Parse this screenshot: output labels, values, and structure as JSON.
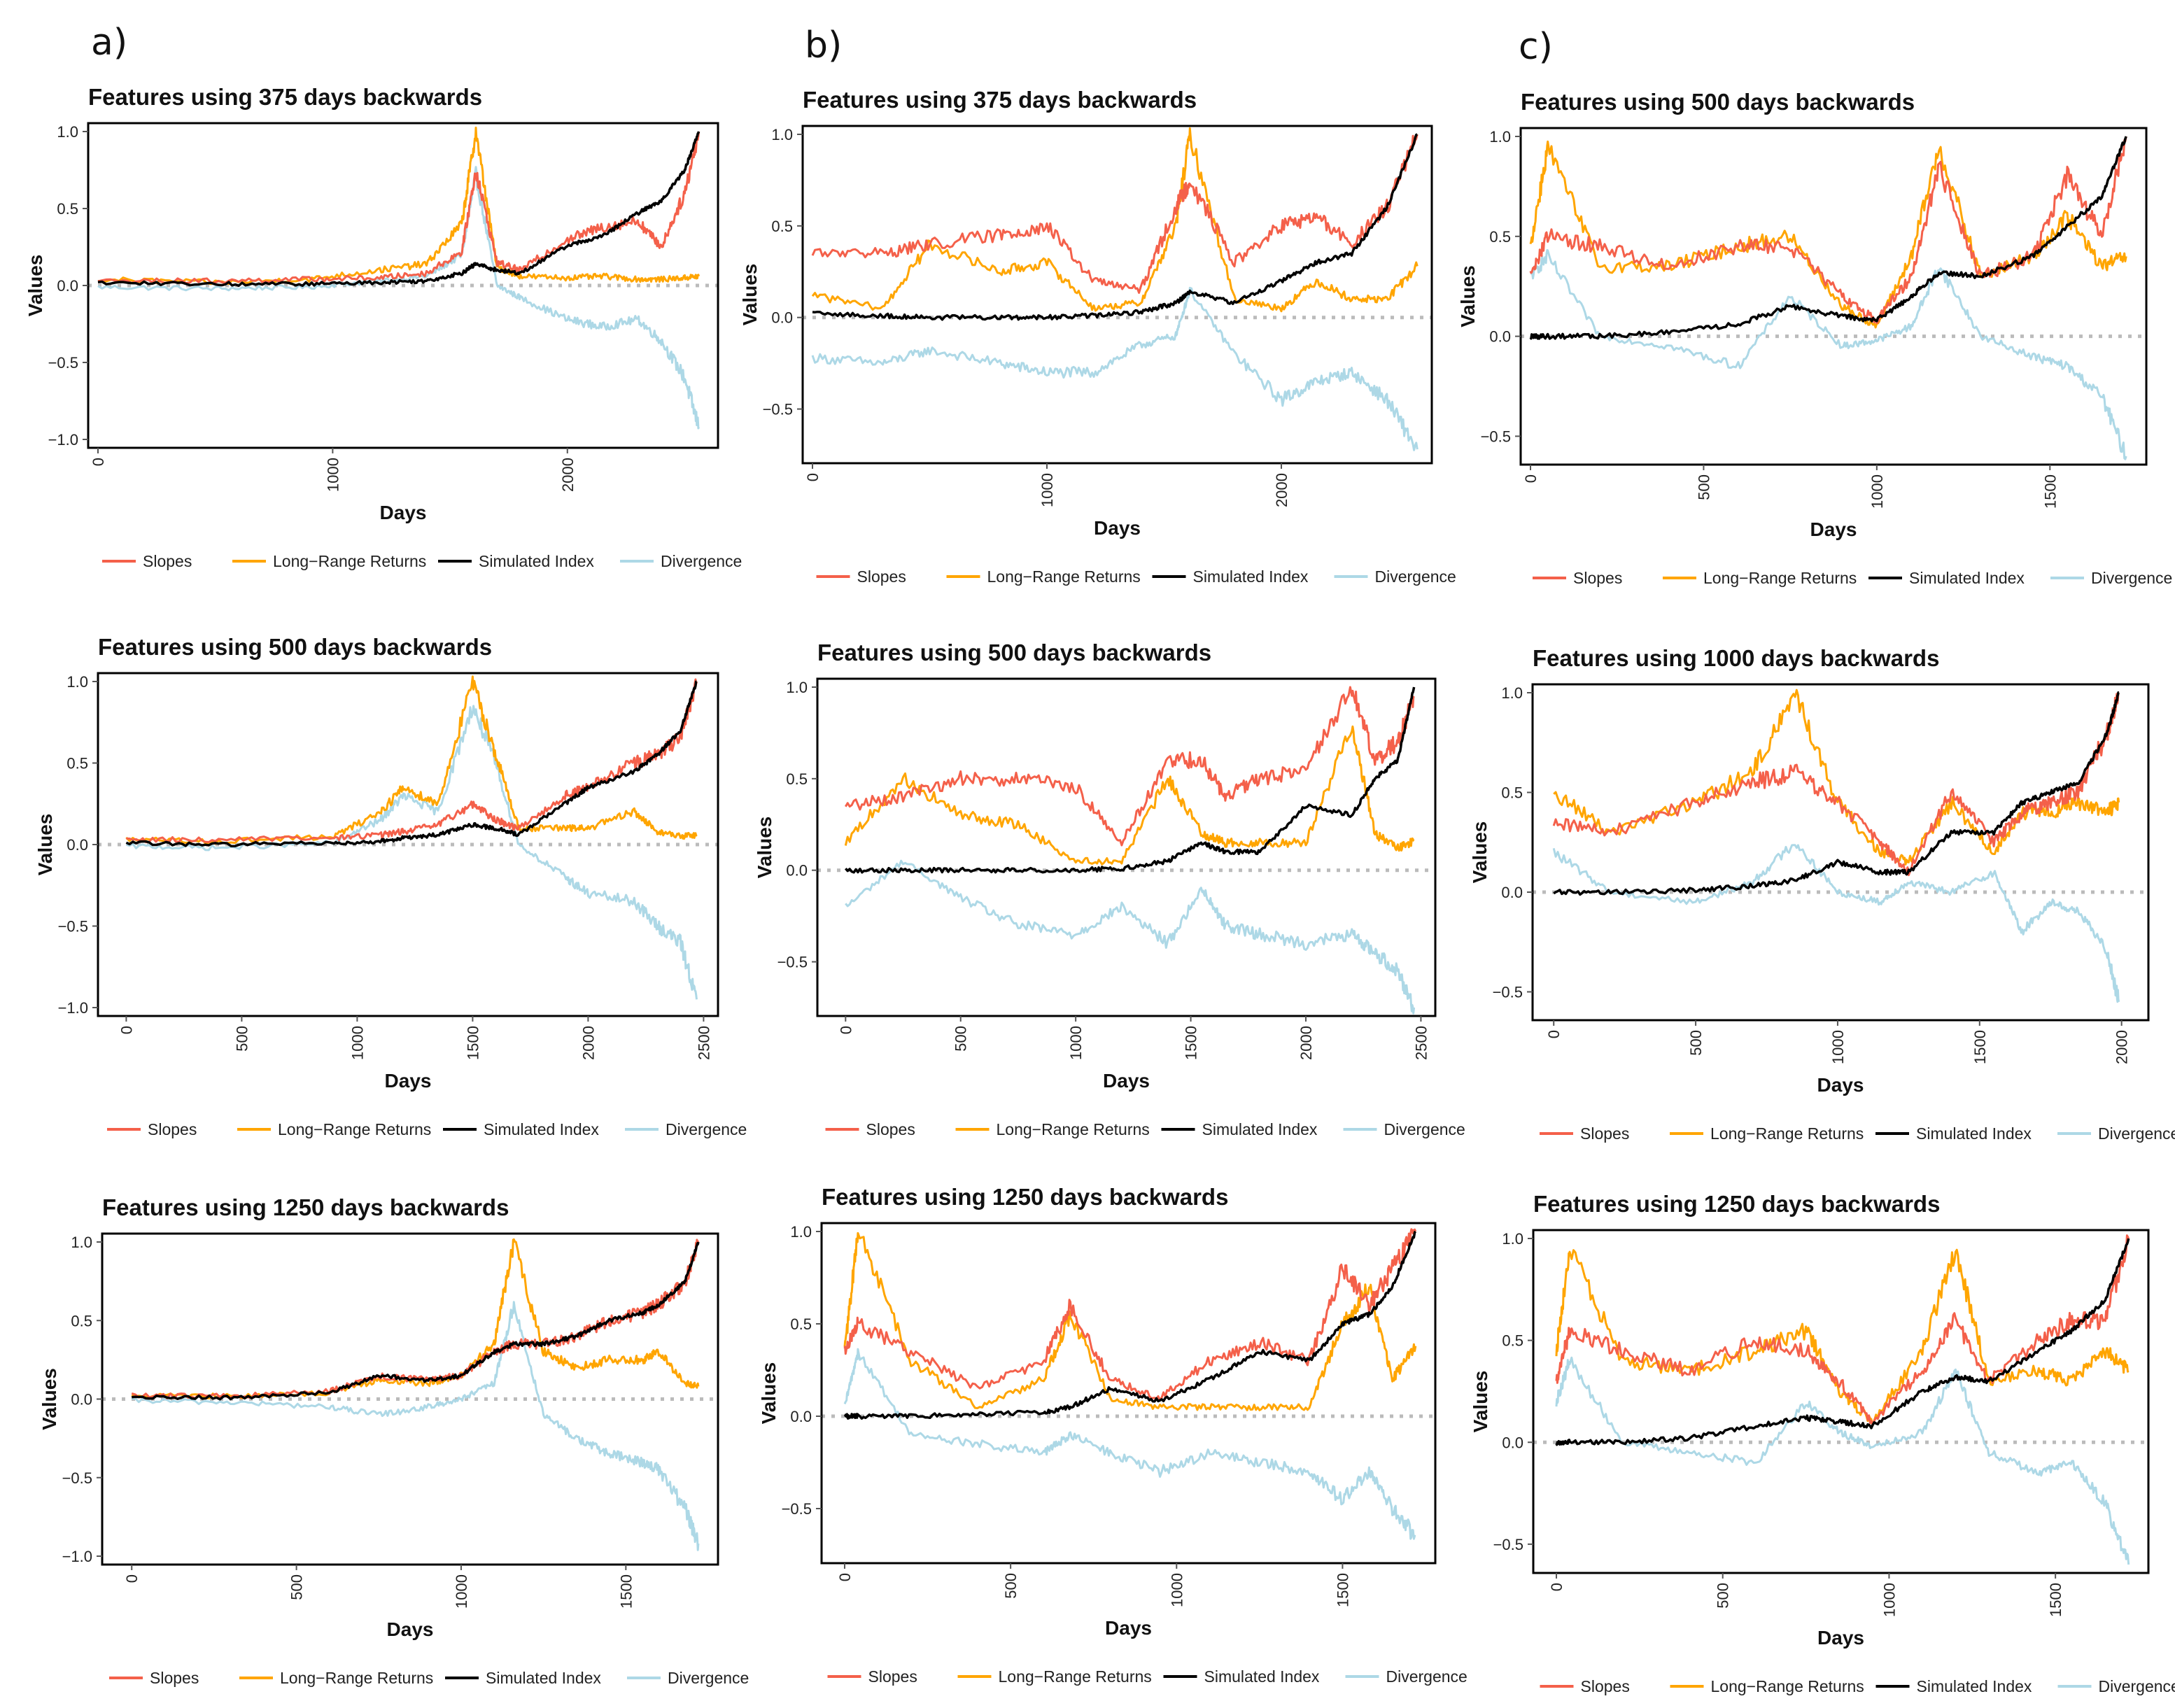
{
  "column_labels": [
    "a)",
    "b)",
    "c)"
  ],
  "series_meta": [
    {
      "key": "slopes",
      "name": "Slopes",
      "color": "#f4604a"
    },
    {
      "key": "lrr",
      "name": "Long−Range Returns",
      "color": "#ffa500"
    },
    {
      "key": "index",
      "name": "Simulated Index",
      "color": "#000000"
    },
    {
      "key": "div",
      "name": "Divergence",
      "color": "#add8e6"
    }
  ],
  "chart_data": [
    {
      "id": "a1",
      "type": "line",
      "title": "Features using 375 days backwards",
      "xlabel": "Days",
      "ylabel": "Values",
      "xlim": [
        0,
        2600
      ],
      "ylim": [
        -1.0,
        1.0
      ],
      "xticks": [
        0,
        1000,
        2000
      ],
      "yticks": [
        -1.0,
        -0.5,
        0.0,
        0.5,
        1.0
      ],
      "x": [
        0,
        500,
        900,
        1200,
        1400,
        1550,
        1610,
        1700,
        1800,
        2000,
        2150,
        2300,
        2400,
        2500,
        2560
      ],
      "series": [
        {
          "key": "slopes",
          "values": [
            0.03,
            0.03,
            0.04,
            0.05,
            0.08,
            0.22,
            0.75,
            0.15,
            0.1,
            0.3,
            0.38,
            0.42,
            0.25,
            0.6,
            1.0
          ]
        },
        {
          "key": "lrr",
          "values": [
            0.04,
            0.02,
            0.04,
            0.1,
            0.14,
            0.4,
            1.0,
            0.12,
            0.06,
            0.05,
            0.06,
            0.04,
            0.04,
            0.05,
            0.06
          ]
        },
        {
          "key": "index",
          "values": [
            0.02,
            0.01,
            0.01,
            0.02,
            0.03,
            0.08,
            0.14,
            0.1,
            0.08,
            0.26,
            0.32,
            0.47,
            0.55,
            0.75,
            1.0
          ]
        },
        {
          "key": "div",
          "values": [
            -0.01,
            -0.02,
            -0.01,
            0.03,
            0.06,
            0.2,
            0.72,
            0.0,
            -0.08,
            -0.22,
            -0.27,
            -0.22,
            -0.36,
            -0.6,
            -0.92
          ]
        }
      ]
    },
    {
      "id": "b1",
      "type": "line",
      "title": "Features using 375 days backwards",
      "xlabel": "Days",
      "ylabel": "Values",
      "xlim": [
        0,
        2600
      ],
      "ylim": [
        -0.75,
        1.0
      ],
      "xticks": [
        0,
        1000,
        2000
      ],
      "yticks": [
        -0.5,
        0.0,
        0.5,
        1.0
      ],
      "x": [
        0,
        300,
        500,
        800,
        1000,
        1200,
        1400,
        1550,
        1610,
        1800,
        2000,
        2150,
        2300,
        2450,
        2580
      ],
      "series": [
        {
          "key": "slopes",
          "values": [
            0.36,
            0.35,
            0.4,
            0.45,
            0.5,
            0.2,
            0.15,
            0.6,
            0.75,
            0.3,
            0.5,
            0.55,
            0.4,
            0.6,
            1.0
          ]
        },
        {
          "key": "lrr",
          "values": [
            0.12,
            0.05,
            0.4,
            0.25,
            0.3,
            0.05,
            0.08,
            0.5,
            1.0,
            0.1,
            0.05,
            0.2,
            0.1,
            0.1,
            0.28
          ]
        },
        {
          "key": "index",
          "values": [
            0.02,
            0.01,
            0.0,
            0.0,
            0.0,
            0.01,
            0.03,
            0.08,
            0.14,
            0.08,
            0.2,
            0.3,
            0.35,
            0.6,
            1.0
          ]
        },
        {
          "key": "div",
          "values": [
            -0.22,
            -0.25,
            -0.18,
            -0.25,
            -0.3,
            -0.3,
            -0.15,
            -0.1,
            0.15,
            -0.2,
            -0.45,
            -0.35,
            -0.3,
            -0.45,
            -0.72
          ]
        }
      ]
    },
    {
      "id": "c1",
      "type": "line",
      "title": "Features using 500 days backwards",
      "xlabel": "Days",
      "ylabel": "Values",
      "xlim": [
        0,
        1750
      ],
      "ylim": [
        -0.6,
        1.0
      ],
      "xticks": [
        0,
        500,
        1000,
        1500
      ],
      "yticks": [
        -0.5,
        0.0,
        0.5,
        1.0
      ],
      "x": [
        0,
        50,
        200,
        400,
        600,
        750,
        900,
        1000,
        1100,
        1180,
        1300,
        1450,
        1550,
        1650,
        1720
      ],
      "series": [
        {
          "key": "slopes",
          "values": [
            0.3,
            0.5,
            0.45,
            0.35,
            0.45,
            0.45,
            0.2,
            0.08,
            0.3,
            0.85,
            0.3,
            0.4,
            0.8,
            0.5,
            1.0
          ]
        },
        {
          "key": "lrr",
          "values": [
            0.45,
            0.95,
            0.35,
            0.35,
            0.45,
            0.5,
            0.15,
            0.05,
            0.4,
            0.95,
            0.3,
            0.4,
            0.6,
            0.35,
            0.4
          ]
        },
        {
          "key": "index",
          "values": [
            0.0,
            0.0,
            0.0,
            0.02,
            0.06,
            0.15,
            0.1,
            0.08,
            0.2,
            0.32,
            0.3,
            0.4,
            0.55,
            0.7,
            1.0
          ]
        },
        {
          "key": "div",
          "values": [
            0.3,
            0.4,
            0.0,
            -0.05,
            -0.15,
            0.2,
            -0.05,
            -0.02,
            0.05,
            0.35,
            0.0,
            -0.1,
            -0.15,
            -0.3,
            -0.6
          ]
        }
      ]
    },
    {
      "id": "a2",
      "type": "line",
      "title": "Features using 500 days backwards",
      "xlabel": "Days",
      "ylabel": "Values",
      "xlim": [
        -80,
        2520
      ],
      "ylim": [
        -1.0,
        1.0
      ],
      "xticks": [
        0,
        500,
        1000,
        1500,
        2000,
        2500
      ],
      "yticks": [
        -1.0,
        -0.5,
        0.0,
        0.5,
        1.0
      ],
      "x": [
        0,
        400,
        900,
        1100,
        1200,
        1350,
        1500,
        1600,
        1700,
        1900,
        2000,
        2200,
        2300,
        2400,
        2470
      ],
      "series": [
        {
          "key": "slopes",
          "values": [
            0.03,
            0.03,
            0.04,
            0.06,
            0.08,
            0.12,
            0.25,
            0.15,
            0.1,
            0.3,
            0.35,
            0.5,
            0.55,
            0.65,
            1.0
          ]
        },
        {
          "key": "lrr",
          "values": [
            0.03,
            0.02,
            0.05,
            0.2,
            0.35,
            0.25,
            1.0,
            0.55,
            0.1,
            0.1,
            0.1,
            0.2,
            0.08,
            0.05,
            0.06
          ]
        },
        {
          "key": "index",
          "values": [
            0.01,
            0.0,
            0.01,
            0.02,
            0.04,
            0.06,
            0.12,
            0.1,
            0.06,
            0.25,
            0.35,
            0.45,
            0.55,
            0.7,
            1.0
          ]
        },
        {
          "key": "div",
          "values": [
            -0.01,
            -0.02,
            0.01,
            0.15,
            0.3,
            0.2,
            0.85,
            0.5,
            0.0,
            -0.2,
            -0.3,
            -0.35,
            -0.5,
            -0.6,
            -0.95
          ]
        }
      ]
    },
    {
      "id": "b2",
      "type": "line",
      "title": "Features using 500 days backwards",
      "xlabel": "Days",
      "ylabel": "Values",
      "xlim": [
        -80,
        2520
      ],
      "ylim": [
        -0.75,
        1.0
      ],
      "xticks": [
        0,
        500,
        1000,
        1500,
        2000,
        2500
      ],
      "yticks": [
        -0.5,
        0.0,
        0.5,
        1.0
      ],
      "x": [
        0,
        250,
        500,
        750,
        1000,
        1200,
        1400,
        1550,
        1650,
        1800,
        2000,
        2200,
        2300,
        2400,
        2470
      ],
      "series": [
        {
          "key": "slopes",
          "values": [
            0.35,
            0.4,
            0.5,
            0.5,
            0.45,
            0.15,
            0.6,
            0.6,
            0.4,
            0.5,
            0.55,
            1.0,
            0.6,
            0.7,
            0.95
          ]
        },
        {
          "key": "lrr",
          "values": [
            0.15,
            0.5,
            0.3,
            0.25,
            0.05,
            0.05,
            0.5,
            0.2,
            0.15,
            0.15,
            0.15,
            0.8,
            0.2,
            0.12,
            0.16
          ]
        },
        {
          "key": "index",
          "values": [
            0.0,
            0.0,
            0.0,
            0.0,
            0.0,
            0.01,
            0.05,
            0.15,
            0.1,
            0.1,
            0.35,
            0.3,
            0.5,
            0.6,
            1.0
          ]
        },
        {
          "key": "div",
          "values": [
            -0.2,
            0.05,
            -0.15,
            -0.3,
            -0.35,
            -0.2,
            -0.4,
            -0.1,
            -0.3,
            -0.35,
            -0.4,
            -0.35,
            -0.45,
            -0.55,
            -0.75
          ]
        }
      ]
    },
    {
      "id": "c2",
      "type": "line",
      "title": "Features using 1000 days backwards",
      "xlabel": "Days",
      "ylabel": "Values",
      "xlim": [
        -40,
        2060
      ],
      "ylim": [
        -0.6,
        1.0
      ],
      "xticks": [
        0,
        500,
        1000,
        1500,
        2000
      ],
      "yticks": [
        -0.5,
        0.0,
        0.5,
        1.0
      ],
      "x": [
        0,
        200,
        500,
        700,
        850,
        1000,
        1150,
        1250,
        1400,
        1550,
        1650,
        1750,
        1850,
        1950,
        1990
      ],
      "series": [
        {
          "key": "slopes",
          "values": [
            0.35,
            0.3,
            0.45,
            0.55,
            0.6,
            0.45,
            0.25,
            0.1,
            0.5,
            0.25,
            0.4,
            0.45,
            0.5,
            0.8,
            1.0
          ]
        },
        {
          "key": "lrr",
          "values": [
            0.5,
            0.3,
            0.45,
            0.6,
            1.0,
            0.45,
            0.2,
            0.15,
            0.45,
            0.2,
            0.4,
            0.4,
            0.45,
            0.4,
            0.45
          ]
        },
        {
          "key": "index",
          "values": [
            0.0,
            0.0,
            0.01,
            0.03,
            0.06,
            0.15,
            0.1,
            0.1,
            0.3,
            0.3,
            0.45,
            0.5,
            0.55,
            0.8,
            1.0
          ]
        },
        {
          "key": "div",
          "values": [
            0.2,
            0.0,
            -0.05,
            0.05,
            0.25,
            0.0,
            -0.05,
            0.05,
            0.0,
            0.1,
            -0.2,
            -0.05,
            -0.1,
            -0.3,
            -0.55
          ]
        }
      ]
    },
    {
      "id": "a3",
      "type": "line",
      "title": "Features using 1250 days backwards",
      "xlabel": "Days",
      "ylabel": "Values",
      "xlim": [
        -60,
        1750
      ],
      "ylim": [
        -1.0,
        1.0
      ],
      "xticks": [
        0,
        500,
        1000,
        1500
      ],
      "yticks": [
        -1.0,
        -0.5,
        0.0,
        0.5,
        1.0
      ],
      "x": [
        0,
        300,
        600,
        750,
        900,
        1000,
        1100,
        1160,
        1250,
        1350,
        1450,
        1550,
        1600,
        1680,
        1720
      ],
      "series": [
        {
          "key": "slopes",
          "values": [
            0.02,
            0.02,
            0.05,
            0.15,
            0.12,
            0.15,
            0.3,
            0.35,
            0.35,
            0.4,
            0.5,
            0.55,
            0.6,
            0.75,
            1.0
          ]
        },
        {
          "key": "lrr",
          "values": [
            0.02,
            0.02,
            0.04,
            0.12,
            0.1,
            0.15,
            0.35,
            1.0,
            0.3,
            0.2,
            0.25,
            0.25,
            0.3,
            0.1,
            0.08
          ]
        },
        {
          "key": "index",
          "values": [
            0.01,
            0.01,
            0.04,
            0.15,
            0.12,
            0.15,
            0.3,
            0.35,
            0.35,
            0.4,
            0.5,
            0.55,
            0.6,
            0.75,
            1.0
          ]
        },
        {
          "key": "div",
          "values": [
            -0.01,
            -0.02,
            -0.05,
            -0.1,
            -0.05,
            0.0,
            0.1,
            0.6,
            -0.1,
            -0.25,
            -0.35,
            -0.4,
            -0.45,
            -0.7,
            -0.92
          ]
        }
      ]
    },
    {
      "id": "b3",
      "type": "line",
      "title": "Features using 1250 days backwards",
      "xlabel": "Days",
      "ylabel": "Values",
      "xlim": [
        -40,
        1750
      ],
      "ylim": [
        -0.75,
        1.0
      ],
      "xticks": [
        0,
        500,
        1000,
        1500
      ],
      "yticks": [
        -0.5,
        0.0,
        0.5,
        1.0
      ],
      "x": [
        0,
        40,
        200,
        400,
        600,
        680,
        800,
        950,
        1100,
        1250,
        1400,
        1500,
        1580,
        1650,
        1720
      ],
      "series": [
        {
          "key": "slopes",
          "values": [
            0.35,
            0.5,
            0.35,
            0.15,
            0.3,
            0.6,
            0.2,
            0.1,
            0.3,
            0.4,
            0.3,
            0.8,
            0.6,
            0.8,
            1.0
          ]
        },
        {
          "key": "lrr",
          "values": [
            0.35,
            1.0,
            0.3,
            0.05,
            0.2,
            0.55,
            0.1,
            0.05,
            0.05,
            0.05,
            0.05,
            0.5,
            0.7,
            0.2,
            0.38
          ]
        },
        {
          "key": "index",
          "values": [
            0.0,
            0.0,
            0.0,
            0.01,
            0.02,
            0.05,
            0.15,
            0.08,
            0.2,
            0.35,
            0.3,
            0.5,
            0.55,
            0.7,
            1.0
          ]
        },
        {
          "key": "div",
          "values": [
            0.05,
            0.35,
            -0.1,
            -0.15,
            -0.2,
            -0.1,
            -0.2,
            -0.3,
            -0.2,
            -0.25,
            -0.3,
            -0.45,
            -0.3,
            -0.5,
            -0.65
          ]
        }
      ]
    },
    {
      "id": "c3",
      "type": "line",
      "title": "Features using 1250 days backwards",
      "xlabel": "Days",
      "ylabel": "Values",
      "xlim": [
        -40,
        1750
      ],
      "ylim": [
        -0.6,
        1.0
      ],
      "xticks": [
        0,
        500,
        1000,
        1500
      ],
      "yticks": [
        -0.5,
        0.0,
        0.5,
        1.0
      ],
      "x": [
        0,
        40,
        200,
        400,
        600,
        750,
        850,
        950,
        1100,
        1200,
        1300,
        1450,
        1550,
        1650,
        1720
      ],
      "series": [
        {
          "key": "slopes",
          "values": [
            0.3,
            0.55,
            0.45,
            0.35,
            0.5,
            0.45,
            0.3,
            0.1,
            0.35,
            0.6,
            0.3,
            0.5,
            0.6,
            0.6,
            1.0
          ]
        },
        {
          "key": "lrr",
          "values": [
            0.45,
            0.95,
            0.4,
            0.35,
            0.45,
            0.55,
            0.25,
            0.1,
            0.45,
            0.95,
            0.3,
            0.35,
            0.3,
            0.45,
            0.35
          ]
        },
        {
          "key": "index",
          "values": [
            0.0,
            0.0,
            0.0,
            0.02,
            0.08,
            0.12,
            0.1,
            0.08,
            0.25,
            0.32,
            0.3,
            0.45,
            0.55,
            0.7,
            1.0
          ]
        },
        {
          "key": "div",
          "values": [
            0.2,
            0.4,
            0.0,
            -0.05,
            -0.1,
            0.2,
            0.05,
            -0.02,
            0.05,
            0.35,
            -0.05,
            -0.15,
            -0.1,
            -0.3,
            -0.6
          ]
        }
      ]
    }
  ]
}
